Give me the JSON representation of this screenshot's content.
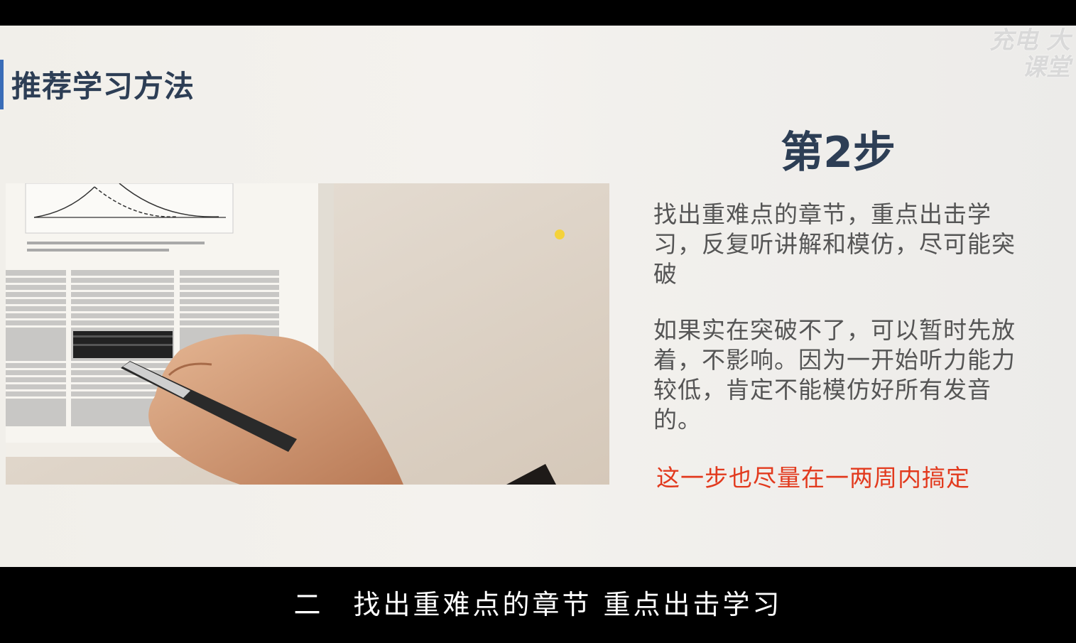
{
  "slide": {
    "title": "推荐学习方法",
    "watermark": "充电 大课堂",
    "step_heading": "第2步",
    "paragraph1": "找出重难点的章节，重点出击学习，反复听讲解和模仿，尽可能突破",
    "paragraph2": "如果实在突破不了，可以暂时先放着，不影响。因为一开始听力能力较低，肯定不能模仿好所有发音的。",
    "highlight": "这一步也尽量在一两周内搞定",
    "colors": {
      "accent_bar": "#3a6db8",
      "title": "#2d3e55",
      "body_text": "#555555",
      "highlight_text": "#e23a1e"
    }
  },
  "photo": {
    "icon": "hand-writing-with-pen-photo"
  },
  "subtitle": {
    "text": "二　找出重难点的章节 重点出击学习"
  }
}
